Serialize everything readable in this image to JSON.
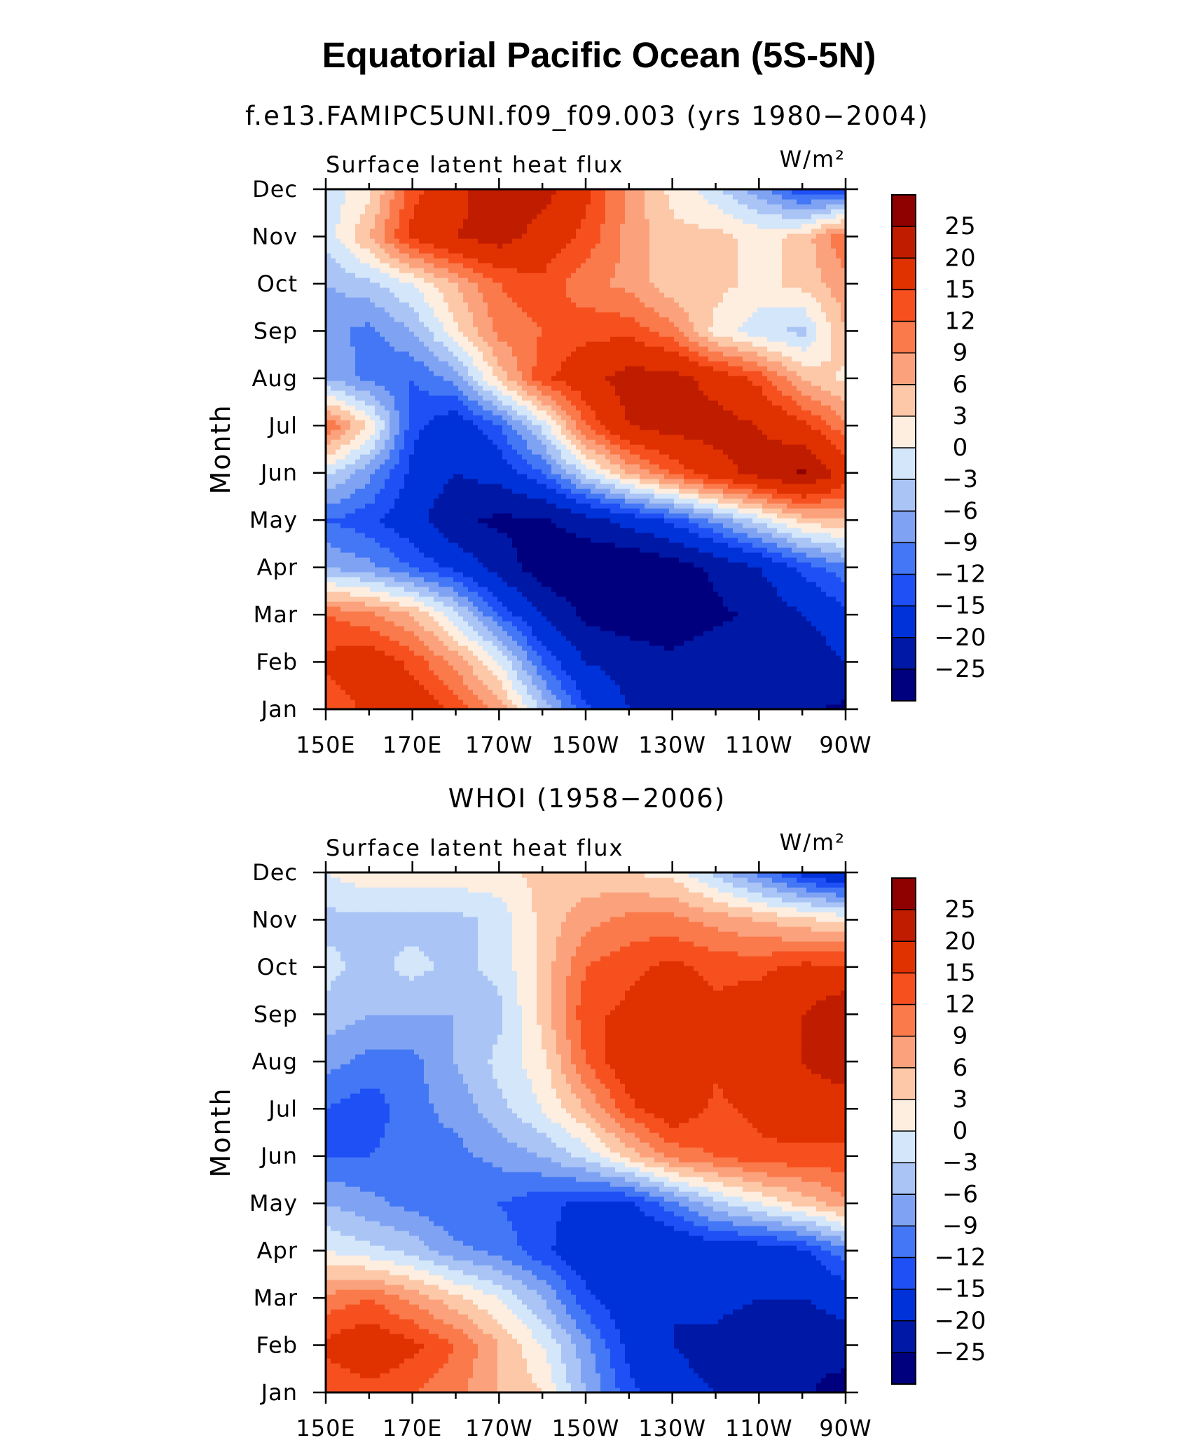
{
  "figure": {
    "title": "Equatorial Pacific Ocean (5S-5N)"
  },
  "colors": {
    "levels": [
      "#00007f",
      "#0018a6",
      "#0032d9",
      "#1e50f5",
      "#4477f5",
      "#7fa3f2",
      "#a9c4f5",
      "#d4e6fa",
      "#fdeee0",
      "#fcc8a8",
      "#fba27d",
      "#fa7a4c",
      "#f7501f",
      "#e03100",
      "#bf1c00",
      "#8f0000"
    ]
  },
  "chart_data": [
    {
      "type": "heatmap",
      "title": "f.e13.FAMIPC5UNI.f09_f09.003 (yrs 1980−2004)",
      "panel_label": "Surface latent heat flux",
      "units": "W/m²",
      "ylabel": "Month",
      "x_tick_labels": [
        "150E",
        "170E",
        "170W",
        "150W",
        "130W",
        "110W",
        "90W"
      ],
      "y_tick_labels": [
        "Jan",
        "Feb",
        "Mar",
        "Apr",
        "May",
        "Jun",
        "Jul",
        "Aug",
        "Sep",
        "Oct",
        "Nov",
        "Dec"
      ],
      "contour_levels": [
        -25,
        -20,
        -15,
        -12,
        -9,
        -6,
        -3,
        0,
        3,
        6,
        9,
        12,
        15,
        20,
        25
      ],
      "colorbar_labels": [
        "25",
        "20",
        "15",
        "12",
        "9",
        "6",
        "3",
        "0",
        "−3",
        "−6",
        "−9",
        "−12",
        "−15",
        "−20",
        "−25"
      ],
      "x": [
        150,
        160,
        170,
        180,
        190,
        200,
        210,
        220,
        230,
        240,
        250,
        260,
        270
      ],
      "months": [
        "Jan",
        "Feb",
        "Mar",
        "Apr",
        "May",
        "Jun",
        "Jul",
        "Aug",
        "Sep",
        "Oct",
        "Nov",
        "Dec"
      ],
      "values": [
        [
          12,
          16,
          18,
          14,
          8,
          -4,
          -14,
          -20,
          -22,
          -22,
          -22,
          -24,
          -26
        ],
        [
          16,
          18,
          14,
          8,
          0,
          -12,
          -20,
          -22,
          -24,
          -22,
          -22,
          -24,
          -20
        ],
        [
          12,
          10,
          6,
          -2,
          -12,
          -20,
          -26,
          -28,
          -28,
          -26,
          -24,
          -20,
          -16
        ],
        [
          -6,
          -8,
          -12,
          -16,
          -22,
          -28,
          -30,
          -30,
          -28,
          -24,
          -20,
          -14,
          -10
        ],
        [
          -12,
          -14,
          -18,
          -24,
          -26,
          -26,
          -22,
          -18,
          -14,
          -8,
          -2,
          4,
          6
        ],
        [
          -2,
          -8,
          -16,
          -20,
          -18,
          -12,
          -2,
          6,
          12,
          18,
          22,
          26,
          18
        ],
        [
          12,
          3,
          -14,
          -18,
          -12,
          -2,
          12,
          20,
          22,
          22,
          20,
          16,
          10
        ],
        [
          -6,
          -10,
          -12,
          -8,
          4,
          14,
          18,
          22,
          22,
          18,
          14,
          6,
          2
        ],
        [
          -8,
          -10,
          -6,
          2,
          10,
          12,
          14,
          14,
          10,
          2,
          -2,
          -4,
          6
        ],
        [
          -6,
          -4,
          0,
          6,
          12,
          14,
          10,
          8,
          4,
          4,
          2,
          4,
          8
        ],
        [
          -2,
          6,
          16,
          20,
          22,
          18,
          14,
          8,
          4,
          4,
          2,
          4,
          12
        ],
        [
          -2,
          2,
          14,
          18,
          24,
          22,
          16,
          8,
          2,
          -2,
          -8,
          -14,
          -14
        ]
      ]
    },
    {
      "type": "heatmap",
      "title": "WHOI (1958−2006)",
      "panel_label": "Surface latent heat flux",
      "units": "W/m²",
      "ylabel": "Month",
      "x_tick_labels": [
        "150E",
        "170E",
        "170W",
        "150W",
        "130W",
        "110W",
        "90W"
      ],
      "y_tick_labels": [
        "Jan",
        "Feb",
        "Mar",
        "Apr",
        "May",
        "Jun",
        "Jul",
        "Aug",
        "Sep",
        "Oct",
        "Nov",
        "Dec"
      ],
      "contour_levels": [
        -25,
        -20,
        -15,
        -12,
        -9,
        -6,
        -3,
        0,
        3,
        6,
        9,
        12,
        15,
        20,
        25
      ],
      "colorbar_labels": [
        "25",
        "20",
        "15",
        "12",
        "9",
        "6",
        "3",
        "0",
        "−3",
        "−6",
        "−9",
        "−12",
        "−15",
        "−20",
        "−25"
      ],
      "x": [
        150,
        160,
        170,
        180,
        190,
        200,
        210,
        220,
        230,
        240,
        250,
        260,
        270
      ],
      "months": [
        "Jan",
        "Feb",
        "Mar",
        "Apr",
        "May",
        "Jun",
        "Jul",
        "Aug",
        "Sep",
        "Oct",
        "Nov",
        "Dec"
      ],
      "values": [
        [
          12,
          14,
          12,
          10,
          6,
          3,
          -6,
          -14,
          -18,
          -20,
          -20,
          -24,
          -28
        ],
        [
          16,
          18,
          16,
          12,
          6,
          0,
          -8,
          -16,
          -20,
          -22,
          -24,
          -24,
          -22
        ],
        [
          10,
          12,
          8,
          4,
          0,
          -6,
          -14,
          -18,
          -20,
          -18,
          -20,
          -20,
          -18
        ],
        [
          0,
          -2,
          -4,
          -8,
          -10,
          -14,
          -18,
          -20,
          -20,
          -18,
          -18,
          -16,
          -10
        ],
        [
          -6,
          -8,
          -10,
          -12,
          -12,
          -14,
          -16,
          -16,
          -10,
          -4,
          0,
          4,
          8
        ],
        [
          -12,
          -12,
          -10,
          -10,
          -8,
          -6,
          -2,
          4,
          10,
          12,
          14,
          14,
          14
        ],
        [
          -12,
          -14,
          -10,
          -8,
          -4,
          0,
          6,
          14,
          18,
          14,
          16,
          18,
          18
        ],
        [
          -8,
          -10,
          -10,
          -6,
          -2,
          2,
          12,
          18,
          20,
          16,
          18,
          20,
          22
        ],
        [
          -4,
          -6,
          -6,
          -6,
          -4,
          4,
          14,
          16,
          18,
          16,
          18,
          20,
          24
        ],
        [
          -2,
          -4,
          -2,
          -4,
          -2,
          4,
          12,
          14,
          16,
          14,
          14,
          16,
          16
        ],
        [
          -4,
          -4,
          -4,
          -4,
          -2,
          4,
          8,
          10,
          10,
          8,
          6,
          4,
          2
        ],
        [
          0,
          2,
          2,
          2,
          2,
          4,
          4,
          3,
          2,
          -4,
          -10,
          -16,
          -20
        ]
      ]
    }
  ]
}
